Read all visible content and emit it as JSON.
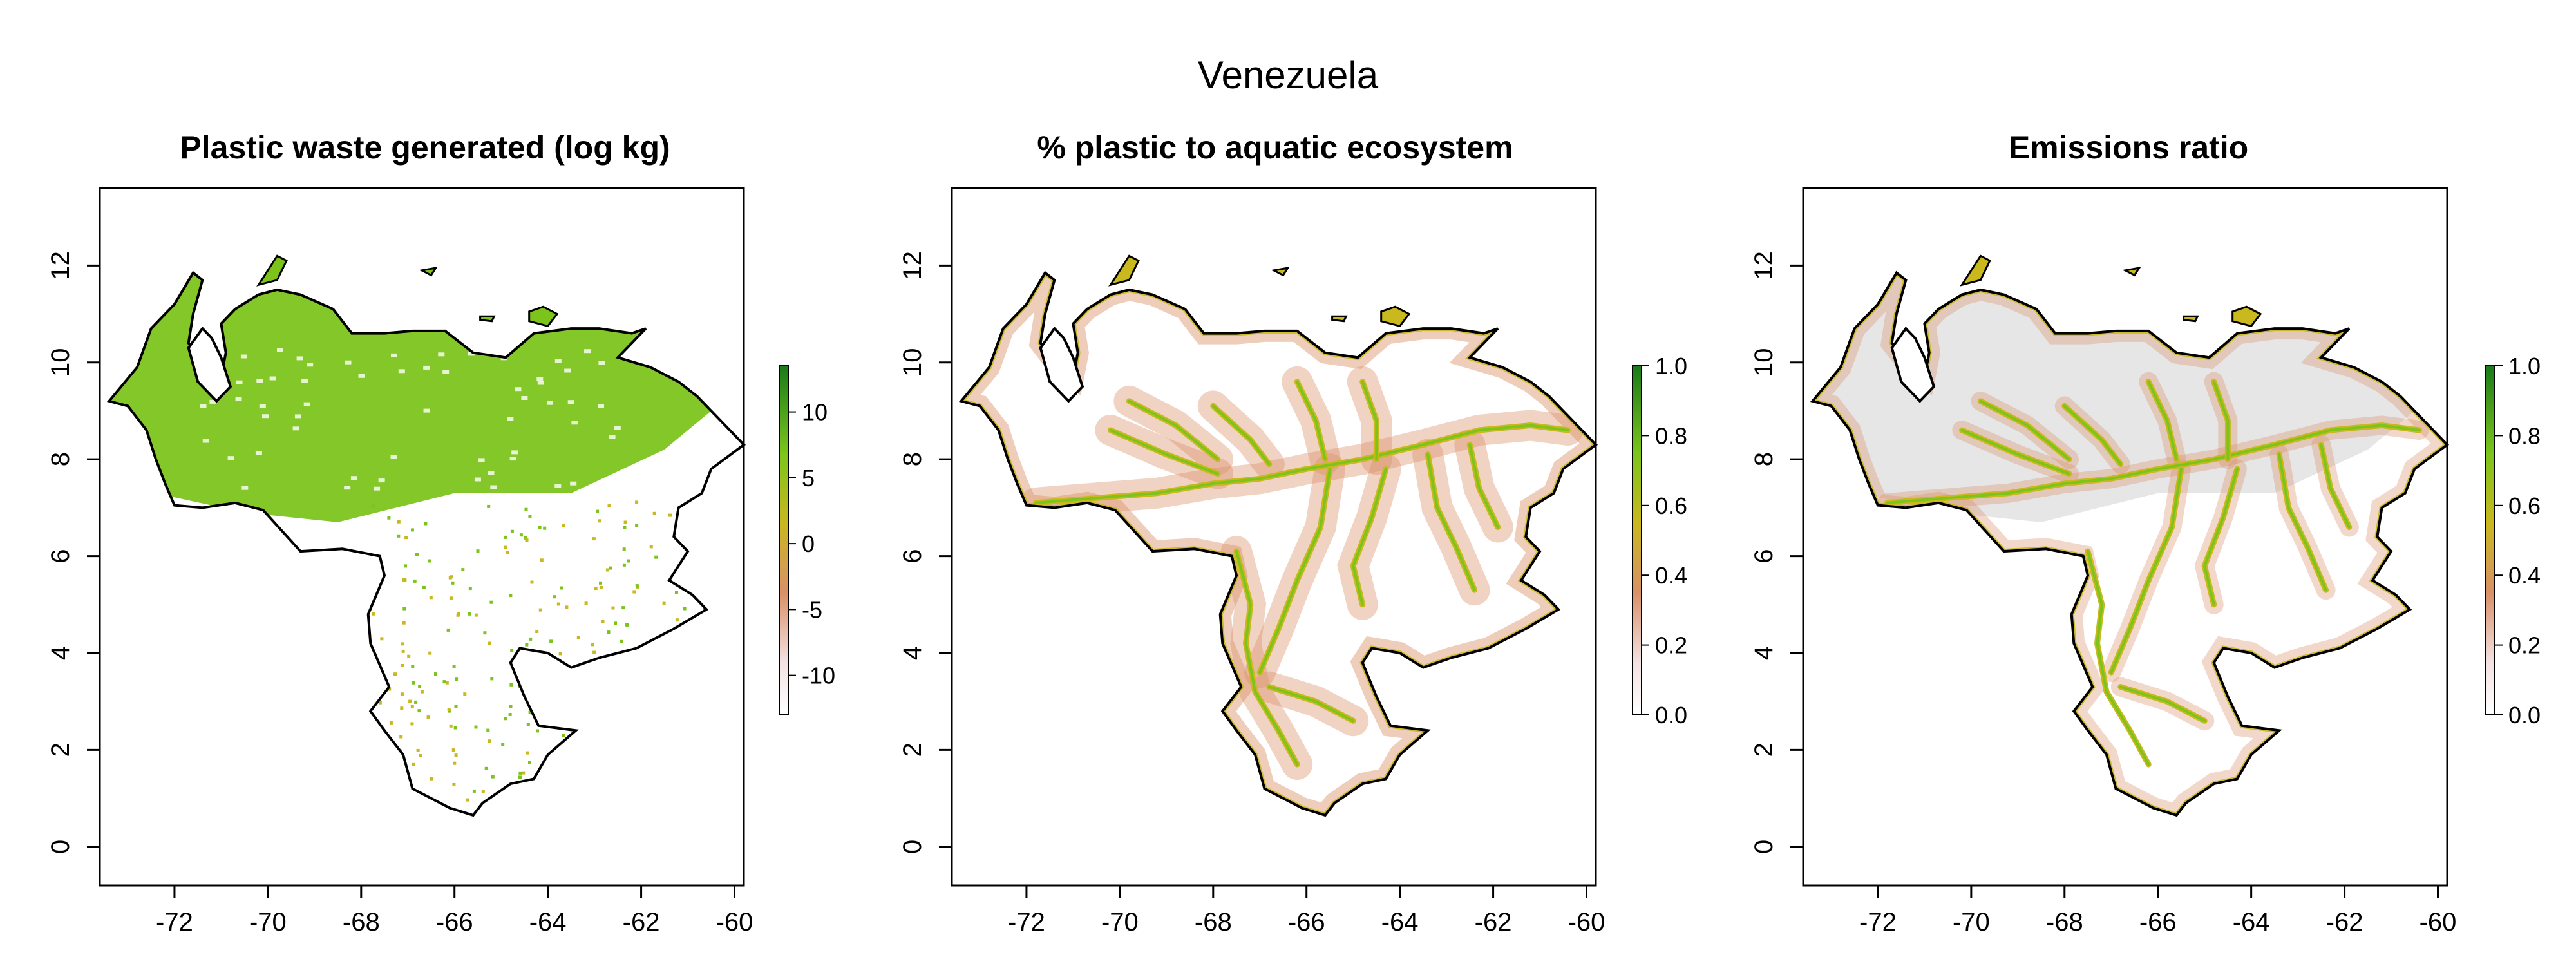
{
  "figure_title": "Venezuela",
  "colors": {
    "high": "#1a7a1a",
    "mid_high": "#7cc41c",
    "mid": "#c9b81e",
    "low": "#d99068",
    "lowest": "#f3e2e2",
    "no_emission": "#e6e6e6",
    "border": "#000000"
  },
  "x_ticks": [
    "-72",
    "-70",
    "-68",
    "-66",
    "-64",
    "-62",
    "-60"
  ],
  "y_ticks": [
    "0",
    "2",
    "4",
    "6",
    "8",
    "10",
    "12"
  ],
  "panels": [
    {
      "title": "Plastic waste generated (log kg)",
      "legend_ticks": [
        "-10",
        "-5",
        "0",
        "5",
        "10"
      ]
    },
    {
      "title": "% plastic to aquatic ecosystem",
      "legend_ticks": [
        "0.0",
        "0.2",
        "0.4",
        "0.6",
        "0.8",
        "1.0"
      ]
    },
    {
      "title": "Emissions ratio",
      "legend_ticks": [
        "0.0",
        "0.2",
        "0.4",
        "0.6",
        "0.8",
        "1.0"
      ]
    }
  ]
}
